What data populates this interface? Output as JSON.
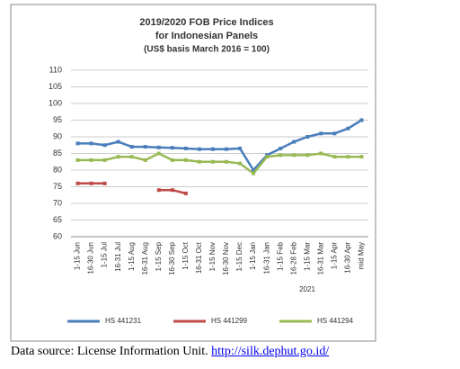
{
  "chart_data": {
    "type": "line",
    "title": [
      "2019/2020 FOB Price Indices",
      "for Indonesian Panels",
      "(US$ basis March 2016 = 100)"
    ],
    "categories": [
      "1-15 Jun",
      "16-30 Jun",
      "1-15 Jul",
      "16-31 Jul",
      "1-15 Aug",
      "16-31 Aug",
      "1-15 Sep",
      "16-30 Sep",
      "1-15 Oct",
      "16-31 Oct",
      "1-15 Nov",
      "16-30 Nov",
      "1-15 Dec",
      "1-15 Jan",
      "16-31 Jan",
      "1-15 Feb",
      "16-28 Feb",
      "1-15 Mar",
      "16-31 Mar",
      "1-15 Apr",
      "16-30 Apr",
      "mid May"
    ],
    "series": [
      {
        "name": "HS 441231",
        "color": "#4a7ebb",
        "values": [
          88,
          88,
          87.5,
          88.5,
          87,
          87,
          86.8,
          86.7,
          86.5,
          86.3,
          86.3,
          86.3,
          86.5,
          80,
          84.5,
          86.5,
          88.5,
          90,
          91,
          91,
          92.5,
          95
        ]
      },
      {
        "name": "HS 441299",
        "color": "#be4b48",
        "values": [
          76,
          76,
          76,
          null,
          null,
          null,
          74,
          74,
          73,
          null,
          null,
          null,
          null,
          null,
          null,
          null,
          null,
          null,
          null,
          null,
          null,
          null
        ]
      },
      {
        "name": "HS 441294",
        "color": "#98b954",
        "values": [
          83,
          83,
          83,
          84,
          84,
          83,
          85,
          83,
          83,
          82.5,
          82.5,
          82.5,
          82,
          79,
          84,
          84.5,
          84.5,
          84.5,
          85,
          84,
          84,
          84
        ]
      }
    ],
    "annotations": [
      "2021"
    ],
    "ylim": [
      60,
      110
    ],
    "yticks": [
      60,
      65,
      70,
      75,
      80,
      85,
      90,
      95,
      100,
      105,
      110
    ],
    "grid": true,
    "legend": "bottom"
  },
  "caption": {
    "text": "Data source: License Information Unit.",
    "link": "http://silk.dephut.go.id/"
  }
}
